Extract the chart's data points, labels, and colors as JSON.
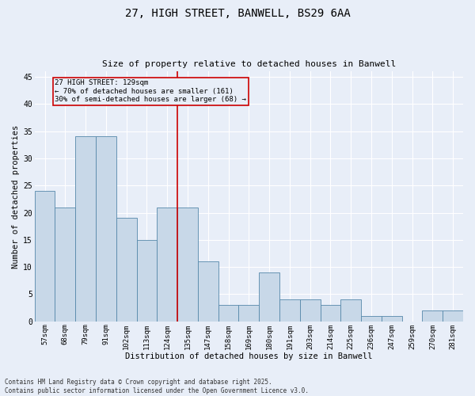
{
  "title": "27, HIGH STREET, BANWELL, BS29 6AA",
  "subtitle": "Size of property relative to detached houses in Banwell",
  "xlabel": "Distribution of detached houses by size in Banwell",
  "ylabel": "Number of detached properties",
  "categories": [
    "57sqm",
    "68sqm",
    "79sqm",
    "91sqm",
    "102sqm",
    "113sqm",
    "124sqm",
    "135sqm",
    "147sqm",
    "158sqm",
    "169sqm",
    "180sqm",
    "191sqm",
    "203sqm",
    "214sqm",
    "225sqm",
    "236sqm",
    "247sqm",
    "259sqm",
    "270sqm",
    "281sqm"
  ],
  "values": [
    24,
    21,
    34,
    34,
    19,
    15,
    21,
    21,
    11,
    3,
    3,
    9,
    4,
    4,
    3,
    4,
    1,
    1,
    0,
    2,
    2
  ],
  "bar_color": "#c8d8e8",
  "bar_edge_color": "#5588aa",
  "background_color": "#e8eef8",
  "grid_color": "#ffffff",
  "vline_color": "#cc0000",
  "annotation_title": "27 HIGH STREET: 129sqm",
  "annotation_line1": "← 70% of detached houses are smaller (161)",
  "annotation_line2": "30% of semi-detached houses are larger (68) →",
  "annotation_box_color": "#cc0000",
  "ylim": [
    0,
    46
  ],
  "yticks": [
    0,
    5,
    10,
    15,
    20,
    25,
    30,
    35,
    40,
    45
  ],
  "footer_line1": "Contains HM Land Registry data © Crown copyright and database right 2025.",
  "footer_line2": "Contains public sector information licensed under the Open Government Licence v3.0."
}
